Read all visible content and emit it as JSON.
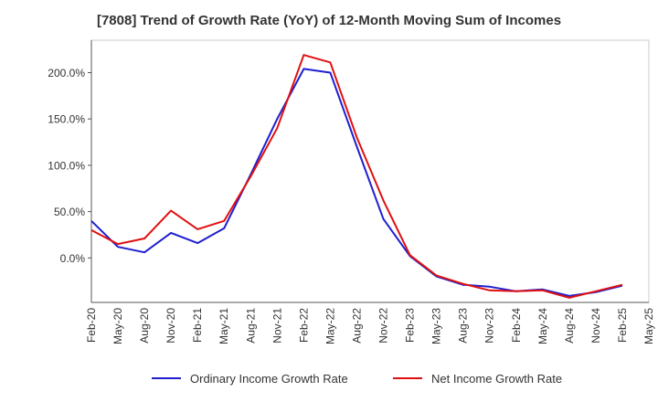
{
  "chart_data": {
    "type": "line",
    "title": "[7808]  Trend of Growth Rate (YoY) of 12-Month Moving Sum of Incomes",
    "xlabel": "",
    "ylabel": "",
    "x": [
      "Feb-20",
      "May-20",
      "Aug-20",
      "Nov-20",
      "Feb-21",
      "May-21",
      "Aug-21",
      "Nov-21",
      "Feb-22",
      "May-22",
      "Aug-22",
      "Nov-22",
      "Feb-23",
      "May-23",
      "Aug-23",
      "Nov-23",
      "Feb-24",
      "May-24",
      "Aug-24",
      "Nov-24",
      "Feb-25",
      "May-25"
    ],
    "yticks": [
      0,
      50,
      100,
      150,
      200
    ],
    "ytick_labels": [
      "0.0%",
      "50.0%",
      "100.0%",
      "150.0%",
      "200.0%"
    ],
    "ylim": [
      -48,
      235
    ],
    "grid": true,
    "legend_position": "bottom",
    "series": [
      {
        "name": "Ordinary Income Growth Rate",
        "color": "#1f1fd0",
        "values": [
          40,
          12,
          6,
          27,
          16,
          32,
          90,
          150,
          204,
          200,
          120,
          42,
          2,
          -20,
          -29,
          -31,
          -36,
          -34,
          -41,
          -37,
          -30,
          null
        ]
      },
      {
        "name": "Net Income Growth Rate",
        "color": "#e01010",
        "values": [
          30,
          15,
          21,
          51,
          31,
          40,
          88,
          140,
          219,
          211,
          130,
          62,
          3,
          -19,
          -28,
          -35,
          -36,
          -35,
          -43,
          -36,
          -29,
          null
        ]
      }
    ]
  }
}
